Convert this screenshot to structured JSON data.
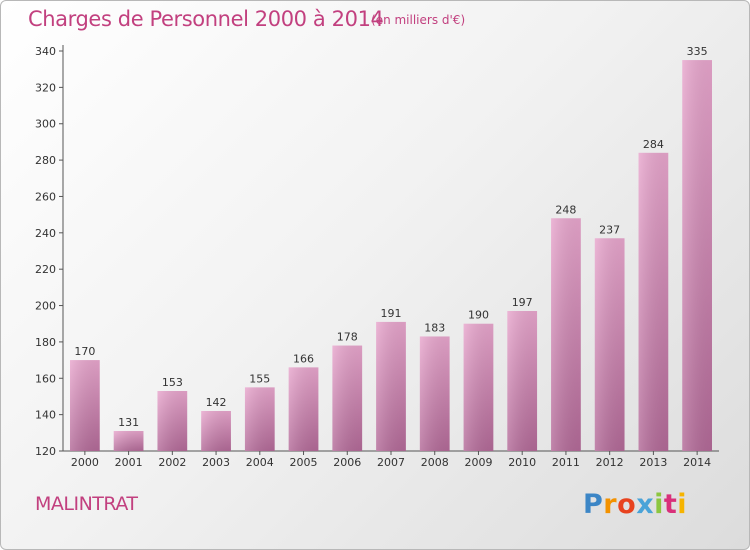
{
  "header": {
    "title": "Charges de Personnel 2000 à 2014",
    "subtitle": "(en milliers d'€)"
  },
  "footer": {
    "commune": "MALINTRAT",
    "logo_letters": [
      "P",
      "r",
      "o",
      "x",
      "i",
      "t",
      "i"
    ]
  },
  "colors": {
    "title": "#c2407f",
    "bar_top": "#e8a6cd",
    "bar_bottom": "#b36a98",
    "axis": "#555555"
  },
  "chart_data": {
    "type": "bar",
    "title": "Charges de Personnel 2000 à 2014",
    "subtitle": "(en milliers d'€)",
    "categories": [
      "2000",
      "2001",
      "2002",
      "2003",
      "2004",
      "2005",
      "2006",
      "2007",
      "2008",
      "2009",
      "2010",
      "2011",
      "2012",
      "2013",
      "2014"
    ],
    "values": [
      170,
      131,
      153,
      142,
      155,
      166,
      178,
      191,
      183,
      190,
      197,
      248,
      237,
      284,
      335
    ],
    "xlabel": "",
    "ylabel": "",
    "ylim": [
      120,
      340
    ],
    "yticks": [
      120,
      140,
      160,
      180,
      200,
      220,
      240,
      260,
      280,
      300,
      320,
      340
    ],
    "data_labels": true,
    "grid": false,
    "legend": "none"
  }
}
